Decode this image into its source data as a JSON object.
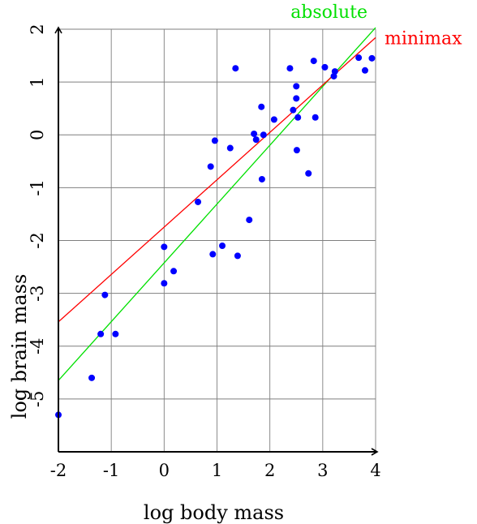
{
  "chart_data": {
    "type": "scatter",
    "xlabel": "log body mass",
    "ylabel": "log brain mass",
    "xlim": [
      -2,
      4
    ],
    "ylim": [
      -6,
      2
    ],
    "x_ticks": [
      "-2",
      "-1",
      "0",
      "1",
      "2",
      "3",
      "4"
    ],
    "y_ticks": [
      "-5",
      "-4",
      "-3",
      "-2",
      "-1",
      "0",
      "1",
      "2"
    ],
    "grid": true,
    "point_color": "#0000ff",
    "points": [
      {
        "x": -2.0,
        "y": -5.3
      },
      {
        "x": -1.37,
        "y": -4.6
      },
      {
        "x": -1.2,
        "y": -3.77
      },
      {
        "x": -1.12,
        "y": -3.03
      },
      {
        "x": -0.92,
        "y": -3.77
      },
      {
        "x": 0.0,
        "y": -2.12
      },
      {
        "x": 0.0,
        "y": -2.81
      },
      {
        "x": 0.18,
        "y": -2.58
      },
      {
        "x": 0.64,
        "y": -1.27
      },
      {
        "x": 0.88,
        "y": -0.6
      },
      {
        "x": 0.92,
        "y": -2.26
      },
      {
        "x": 0.96,
        "y": -0.11
      },
      {
        "x": 1.1,
        "y": -2.1
      },
      {
        "x": 1.25,
        "y": -0.25
      },
      {
        "x": 1.35,
        "y": 1.26
      },
      {
        "x": 1.39,
        "y": -2.29
      },
      {
        "x": 1.61,
        "y": -1.61
      },
      {
        "x": 1.7,
        "y": 0.02
      },
      {
        "x": 1.74,
        "y": -0.09
      },
      {
        "x": 1.84,
        "y": 0.53
      },
      {
        "x": 1.85,
        "y": -0.84
      },
      {
        "x": 1.88,
        "y": 0.0
      },
      {
        "x": 2.08,
        "y": 0.29
      },
      {
        "x": 2.38,
        "y": 1.26
      },
      {
        "x": 2.44,
        "y": 0.47
      },
      {
        "x": 2.5,
        "y": 0.92
      },
      {
        "x": 2.5,
        "y": 0.69
      },
      {
        "x": 2.51,
        "y": -0.29
      },
      {
        "x": 2.53,
        "y": 0.33
      },
      {
        "x": 2.73,
        "y": -0.73
      },
      {
        "x": 2.83,
        "y": 1.4
      },
      {
        "x": 2.86,
        "y": 0.33
      },
      {
        "x": 3.04,
        "y": 1.28
      },
      {
        "x": 3.21,
        "y": 1.11
      },
      {
        "x": 3.23,
        "y": 1.2
      },
      {
        "x": 3.68,
        "y": 1.46
      },
      {
        "x": 3.8,
        "y": 1.22
      },
      {
        "x": 3.93,
        "y": 1.45
      }
    ],
    "fit_lines": [
      {
        "name": "absolute",
        "color": "#00e000",
        "x": [
          -2,
          4
        ],
        "y": [
          -4.65,
          2.03
        ]
      },
      {
        "name": "minimax",
        "color": "#ff0000",
        "x": [
          -2,
          4
        ],
        "y": [
          -3.54,
          1.84
        ]
      }
    ]
  }
}
